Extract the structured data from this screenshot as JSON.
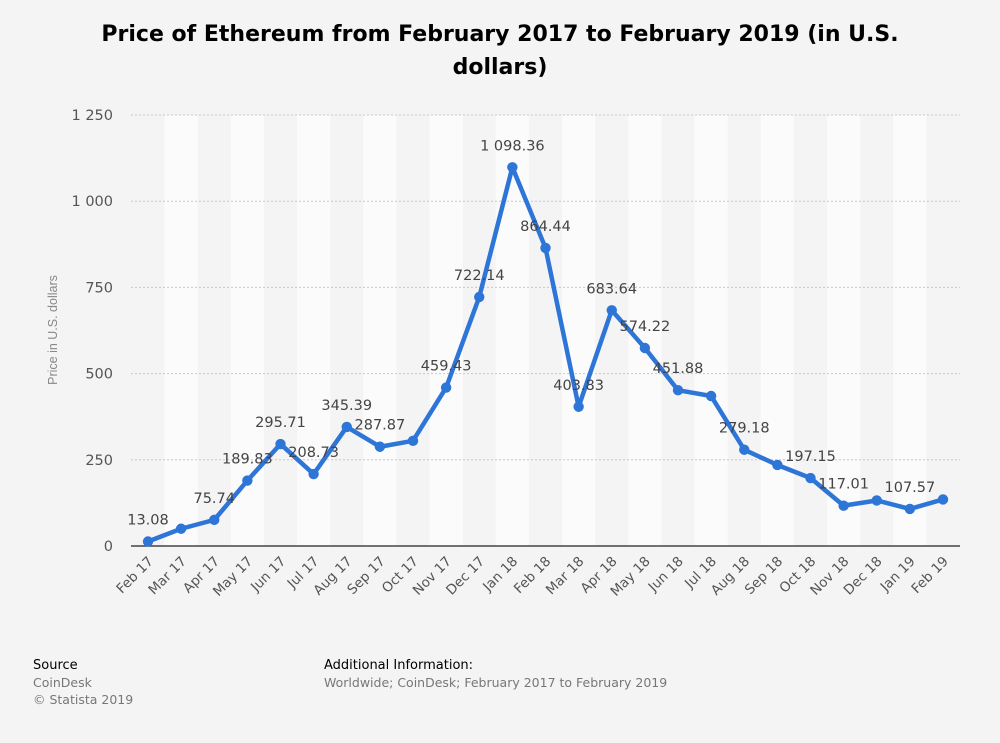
{
  "chart_data": {
    "type": "line",
    "title": "Price of Ethereum from February 2017 to February 2019 (in U.S. dollars)",
    "xlabel": "",
    "ylabel": "Price in U.S. dollars",
    "ylim": [
      0,
      1250
    ],
    "yticks": [
      0,
      250,
      500,
      750,
      1000,
      1250
    ],
    "ytick_labels": [
      "0",
      "250",
      "500",
      "750",
      "1 000",
      "1 250"
    ],
    "grid": true,
    "categories": [
      "Feb 17",
      "Mar 17",
      "Apr 17",
      "May 17",
      "Jun 17",
      "Jul 17",
      "Aug 17",
      "Sep 17",
      "Oct 17",
      "Nov 17",
      "Dec 17",
      "Jan 18",
      "Feb 18",
      "Mar 18",
      "Apr 18",
      "May 18",
      "Jun 18",
      "Jul 18",
      "Aug 18",
      "Sep 18",
      "Oct 18",
      "Nov 18",
      "Dec 18",
      "Jan 19",
      "Feb 19"
    ],
    "series": [
      {
        "color": "#2e75d8",
        "values": [
          13.08,
          50,
          75.74,
          189.83,
          295.71,
          208.73,
          345.39,
          287.87,
          305,
          459.43,
          722.14,
          1098.36,
          864.44,
          403.83,
          683.64,
          574.22,
          451.88,
          435,
          279.18,
          235,
          197.15,
          117.01,
          132,
          107.57,
          135
        ],
        "data_labels": [
          "13.08",
          "",
          "75.74",
          "189.83",
          "295.71",
          "208.73",
          "345.39",
          "287.87",
          "",
          "459.43",
          "722.14",
          "1 098.36",
          "864.44",
          "403.83",
          "683.64",
          "574.22",
          "451.88",
          "",
          "279.18",
          "",
          "197.15",
          "117.01",
          "",
          "107.57",
          ""
        ]
      }
    ]
  },
  "footer": {
    "source_heading": "Source",
    "source_name": "CoinDesk",
    "copyright": "© Statista 2019",
    "additional_heading": "Additional Information:",
    "additional_text": "Worldwide; CoinDesk; February 2017 to February 2019"
  }
}
